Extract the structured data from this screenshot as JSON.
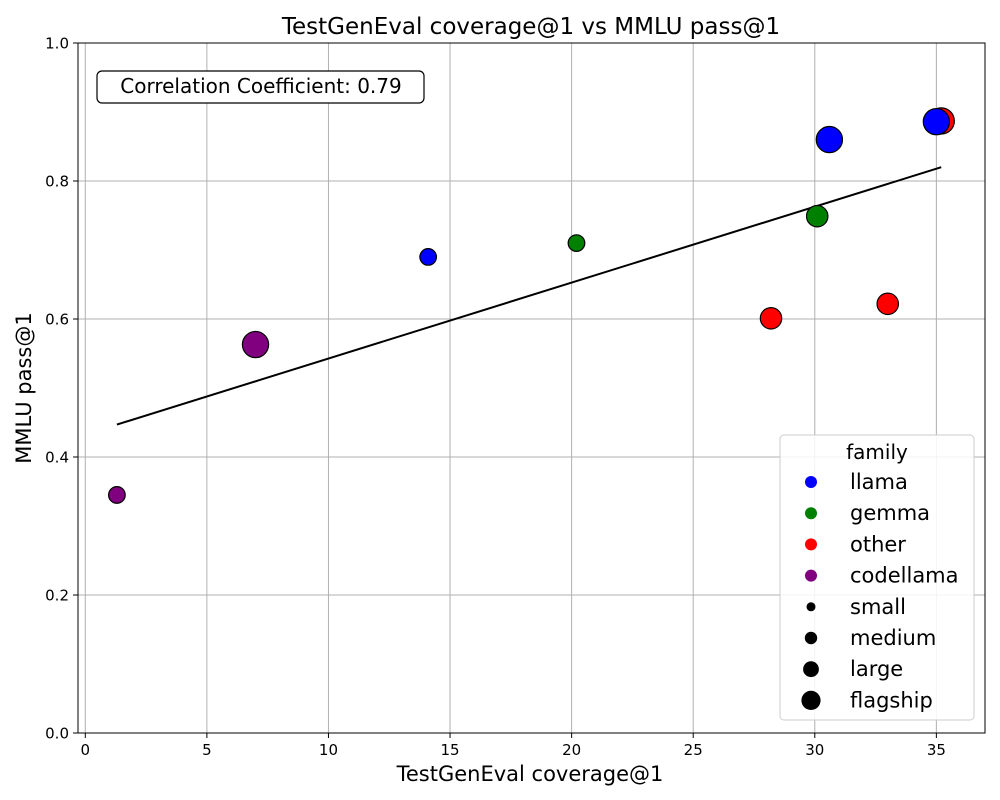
{
  "chart_data": {
    "type": "scatter",
    "title": "TestGenEval coverage@1 vs MMLU pass@1",
    "xlabel": "TestGenEval coverage@1",
    "ylabel": "MMLU pass@1",
    "xlim": [
      -0.3,
      37
    ],
    "ylim": [
      0,
      1.0
    ],
    "x_ticks": [
      "0",
      "5",
      "10",
      "15",
      "20",
      "25",
      "30",
      "35"
    ],
    "x_tick_values": [
      0,
      5,
      10,
      15,
      20,
      25,
      30,
      35
    ],
    "y_ticks": [
      "0.0",
      "0.2",
      "0.4",
      "0.6",
      "0.8",
      "1.0"
    ],
    "y_tick_values": [
      0,
      0.2,
      0.4,
      0.6,
      0.8,
      1.0
    ],
    "grid": true,
    "annotation": "Correlation Coefficient: 0.79",
    "trend_line": {
      "x": [
        1.3,
        35.2
      ],
      "y": [
        0.447,
        0.82
      ]
    },
    "family_colors": {
      "llama": "#0000ff",
      "gemma": "#008000",
      "other": "#ff0000",
      "codellama": "#800080"
    },
    "size_scale": {
      "small": 1,
      "medium": 2,
      "large": 3,
      "flagship": 4
    },
    "points": [
      {
        "x": 1.3,
        "y": 0.345,
        "family": "codellama",
        "size": "medium"
      },
      {
        "x": 7.0,
        "y": 0.563,
        "family": "codellama",
        "size": "flagship"
      },
      {
        "x": 14.1,
        "y": 0.69,
        "family": "llama",
        "size": "medium"
      },
      {
        "x": 20.2,
        "y": 0.71,
        "family": "gemma",
        "size": "medium"
      },
      {
        "x": 28.2,
        "y": 0.601,
        "family": "other",
        "size": "large"
      },
      {
        "x": 30.1,
        "y": 0.749,
        "family": "gemma",
        "size": "large"
      },
      {
        "x": 30.6,
        "y": 0.86,
        "family": "llama",
        "size": "flagship"
      },
      {
        "x": 33.0,
        "y": 0.622,
        "family": "other",
        "size": "large"
      },
      {
        "x": 35.2,
        "y": 0.887,
        "family": "other",
        "size": "flagship"
      },
      {
        "x": 35.0,
        "y": 0.886,
        "family": "llama",
        "size": "flagship"
      }
    ],
    "legend": {
      "title": "family",
      "position": "bottom-right",
      "color_entries": [
        {
          "label": "llama",
          "color": "#0000ff"
        },
        {
          "label": "gemma",
          "color": "#008000"
        },
        {
          "label": "other",
          "color": "#ff0000"
        },
        {
          "label": "codellama",
          "color": "#800080"
        }
      ],
      "size_entries": [
        {
          "label": "small",
          "size": 1
        },
        {
          "label": "medium",
          "size": 2
        },
        {
          "label": "large",
          "size": 3
        },
        {
          "label": "flagship",
          "size": 4
        }
      ]
    }
  }
}
